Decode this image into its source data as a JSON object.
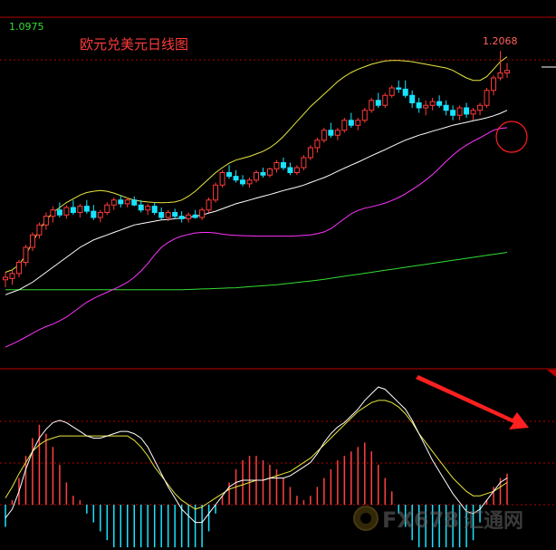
{
  "chart_data": [
    {
      "type": "candlestick",
      "title": "欧元兑美元日线图",
      "top_axis_label": "1.0975",
      "peak_label": "1.2068",
      "ylim": [
        1.08,
        1.22
      ],
      "colors": {
        "up": "#ff3b3b",
        "down": "#19e3ff",
        "mid": "#ffffff",
        "upper": "#e8e840",
        "ma_slow": "#ff33ff",
        "ma_long": "#33dd33",
        "grid": "#b00000",
        "annotation": "#ff2020"
      },
      "candles": [
        {
          "o": 1.115,
          "h": 1.118,
          "l": 1.112,
          "c": 1.116
        },
        {
          "o": 1.1155,
          "h": 1.119,
          "l": 1.113,
          "c": 1.1175
        },
        {
          "o": 1.1175,
          "h": 1.123,
          "l": 1.116,
          "c": 1.122
        },
        {
          "o": 1.122,
          "h": 1.129,
          "l": 1.1205,
          "c": 1.128
        },
        {
          "o": 1.128,
          "h": 1.134,
          "l": 1.1265,
          "c": 1.133
        },
        {
          "o": 1.133,
          "h": 1.138,
          "l": 1.1315,
          "c": 1.137
        },
        {
          "o": 1.137,
          "h": 1.142,
          "l": 1.135,
          "c": 1.1405
        },
        {
          "o": 1.1405,
          "h": 1.1445,
          "l": 1.138,
          "c": 1.143
        },
        {
          "o": 1.143,
          "h": 1.146,
          "l": 1.14,
          "c": 1.141
        },
        {
          "o": 1.141,
          "h": 1.145,
          "l": 1.1395,
          "c": 1.144
        },
        {
          "o": 1.144,
          "h": 1.147,
          "l": 1.141,
          "c": 1.142
        },
        {
          "o": 1.142,
          "h": 1.1455,
          "l": 1.14,
          "c": 1.1445
        },
        {
          "o": 1.1445,
          "h": 1.147,
          "l": 1.1415,
          "c": 1.1425
        },
        {
          "o": 1.1425,
          "h": 1.145,
          "l": 1.139,
          "c": 1.14
        },
        {
          "o": 1.14,
          "h": 1.143,
          "l": 1.138,
          "c": 1.142
        },
        {
          "o": 1.142,
          "h": 1.146,
          "l": 1.141,
          "c": 1.145
        },
        {
          "o": 1.145,
          "h": 1.148,
          "l": 1.143,
          "c": 1.147
        },
        {
          "o": 1.147,
          "h": 1.149,
          "l": 1.144,
          "c": 1.1455
        },
        {
          "o": 1.1455,
          "h": 1.148,
          "l": 1.144,
          "c": 1.147
        },
        {
          "o": 1.147,
          "h": 1.1485,
          "l": 1.1445,
          "c": 1.145
        },
        {
          "o": 1.145,
          "h": 1.147,
          "l": 1.142,
          "c": 1.143
        },
        {
          "o": 1.143,
          "h": 1.1455,
          "l": 1.141,
          "c": 1.1445
        },
        {
          "o": 1.1445,
          "h": 1.146,
          "l": 1.141,
          "c": 1.142
        },
        {
          "o": 1.142,
          "h": 1.144,
          "l": 1.139,
          "c": 1.14
        },
        {
          "o": 1.14,
          "h": 1.143,
          "l": 1.1385,
          "c": 1.142
        },
        {
          "o": 1.142,
          "h": 1.1435,
          "l": 1.1395,
          "c": 1.1405
        },
        {
          "o": 1.1405,
          "h": 1.1425,
          "l": 1.138,
          "c": 1.1395
        },
        {
          "o": 1.1395,
          "h": 1.142,
          "l": 1.138,
          "c": 1.141
        },
        {
          "o": 1.141,
          "h": 1.143,
          "l": 1.1395,
          "c": 1.14
        },
        {
          "o": 1.14,
          "h": 1.144,
          "l": 1.139,
          "c": 1.143
        },
        {
          "o": 1.143,
          "h": 1.148,
          "l": 1.142,
          "c": 1.147
        },
        {
          "o": 1.147,
          "h": 1.154,
          "l": 1.146,
          "c": 1.153
        },
        {
          "o": 1.153,
          "h": 1.159,
          "l": 1.152,
          "c": 1.158
        },
        {
          "o": 1.158,
          "h": 1.161,
          "l": 1.1555,
          "c": 1.1565
        },
        {
          "o": 1.1565,
          "h": 1.159,
          "l": 1.154,
          "c": 1.155
        },
        {
          "o": 1.155,
          "h": 1.157,
          "l": 1.1525,
          "c": 1.1535
        },
        {
          "o": 1.1535,
          "h": 1.156,
          "l": 1.152,
          "c": 1.155
        },
        {
          "o": 1.155,
          "h": 1.159,
          "l": 1.154,
          "c": 1.158
        },
        {
          "o": 1.158,
          "h": 1.16,
          "l": 1.156,
          "c": 1.157
        },
        {
          "o": 1.157,
          "h": 1.16,
          "l": 1.156,
          "c": 1.1595
        },
        {
          "o": 1.1595,
          "h": 1.163,
          "l": 1.158,
          "c": 1.162
        },
        {
          "o": 1.162,
          "h": 1.164,
          "l": 1.159,
          "c": 1.16
        },
        {
          "o": 1.16,
          "h": 1.162,
          "l": 1.157,
          "c": 1.158
        },
        {
          "o": 1.158,
          "h": 1.161,
          "l": 1.157,
          "c": 1.16
        },
        {
          "o": 1.16,
          "h": 1.165,
          "l": 1.159,
          "c": 1.164
        },
        {
          "o": 1.164,
          "h": 1.169,
          "l": 1.163,
          "c": 1.168
        },
        {
          "o": 1.168,
          "h": 1.172,
          "l": 1.166,
          "c": 1.171
        },
        {
          "o": 1.171,
          "h": 1.176,
          "l": 1.17,
          "c": 1.175
        },
        {
          "o": 1.175,
          "h": 1.178,
          "l": 1.172,
          "c": 1.173
        },
        {
          "o": 1.173,
          "h": 1.176,
          "l": 1.171,
          "c": 1.175
        },
        {
          "o": 1.175,
          "h": 1.18,
          "l": 1.174,
          "c": 1.179
        },
        {
          "o": 1.179,
          "h": 1.182,
          "l": 1.176,
          "c": 1.177
        },
        {
          "o": 1.177,
          "h": 1.18,
          "l": 1.175,
          "c": 1.179
        },
        {
          "o": 1.179,
          "h": 1.184,
          "l": 1.178,
          "c": 1.183
        },
        {
          "o": 1.183,
          "h": 1.188,
          "l": 1.182,
          "c": 1.187
        },
        {
          "o": 1.187,
          "h": 1.19,
          "l": 1.184,
          "c": 1.185
        },
        {
          "o": 1.185,
          "h": 1.19,
          "l": 1.184,
          "c": 1.189
        },
        {
          "o": 1.189,
          "h": 1.193,
          "l": 1.188,
          "c": 1.192
        },
        {
          "o": 1.192,
          "h": 1.195,
          "l": 1.19,
          "c": 1.1915
        },
        {
          "o": 1.1915,
          "h": 1.195,
          "l": 1.188,
          "c": 1.189
        },
        {
          "o": 1.189,
          "h": 1.191,
          "l": 1.184,
          "c": 1.186
        },
        {
          "o": 1.186,
          "h": 1.188,
          "l": 1.182,
          "c": 1.184
        },
        {
          "o": 1.184,
          "h": 1.187,
          "l": 1.181,
          "c": 1.185
        },
        {
          "o": 1.185,
          "h": 1.188,
          "l": 1.183,
          "c": 1.1865
        },
        {
          "o": 1.1865,
          "h": 1.189,
          "l": 1.184,
          "c": 1.185
        },
        {
          "o": 1.185,
          "h": 1.187,
          "l": 1.181,
          "c": 1.183
        },
        {
          "o": 1.183,
          "h": 1.185,
          "l": 1.179,
          "c": 1.181
        },
        {
          "o": 1.181,
          "h": 1.185,
          "l": 1.179,
          "c": 1.184
        },
        {
          "o": 1.184,
          "h": 1.186,
          "l": 1.18,
          "c": 1.1815
        },
        {
          "o": 1.1815,
          "h": 1.184,
          "l": 1.179,
          "c": 1.183
        },
        {
          "o": 1.183,
          "h": 1.186,
          "l": 1.181,
          "c": 1.185
        },
        {
          "o": 1.185,
          "h": 1.192,
          "l": 1.184,
          "c": 1.191
        },
        {
          "o": 1.191,
          "h": 1.197,
          "l": 1.189,
          "c": 1.196
        },
        {
          "o": 1.196,
          "h": 1.2068,
          "l": 1.195,
          "c": 1.198
        },
        {
          "o": 1.198,
          "h": 1.202,
          "l": 1.196,
          "c": 1.199
        }
      ],
      "mid_band": [
        1.109,
        1.11,
        1.111,
        1.1125,
        1.114,
        1.116,
        1.118,
        1.12,
        1.122,
        1.124,
        1.126,
        1.128,
        1.1295,
        1.131,
        1.132,
        1.133,
        1.134,
        1.135,
        1.136,
        1.137,
        1.1375,
        1.138,
        1.1385,
        1.139,
        1.1392,
        1.1395,
        1.1398,
        1.14,
        1.1405,
        1.141,
        1.1418,
        1.1425,
        1.1435,
        1.1445,
        1.1455,
        1.1462,
        1.147,
        1.1478,
        1.1485,
        1.1492,
        1.15,
        1.1508,
        1.1515,
        1.1522,
        1.153,
        1.154,
        1.155,
        1.156,
        1.1572,
        1.1585,
        1.1598,
        1.161,
        1.1622,
        1.1635,
        1.1648,
        1.166,
        1.1672,
        1.1685,
        1.1698,
        1.171,
        1.172,
        1.173,
        1.1738,
        1.1746,
        1.1754,
        1.1762,
        1.177,
        1.1776,
        1.1782,
        1.1788,
        1.1794,
        1.18,
        1.1808,
        1.1818,
        1.183
      ],
      "upper_band": [
        1.118,
        1.119,
        1.121,
        1.125,
        1.13,
        1.135,
        1.139,
        1.142,
        1.144,
        1.146,
        1.1475,
        1.149,
        1.15,
        1.1505,
        1.1508,
        1.1505,
        1.1498,
        1.1488,
        1.1478,
        1.147,
        1.1465,
        1.1462,
        1.146,
        1.1459,
        1.146,
        1.1462,
        1.147,
        1.1485,
        1.1505,
        1.153,
        1.1555,
        1.158,
        1.16,
        1.1618,
        1.163,
        1.1638,
        1.1645,
        1.1655,
        1.1665,
        1.168,
        1.17,
        1.1725,
        1.1755,
        1.1785,
        1.1815,
        1.1845,
        1.187,
        1.1895,
        1.192,
        1.1945,
        1.1965,
        1.1982,
        1.1995,
        1.2005,
        1.2015,
        1.2022,
        1.2028,
        1.203,
        1.203,
        1.2028,
        1.2025,
        1.202,
        1.2015,
        1.201,
        1.2005,
        1.2,
        1.199,
        1.1975,
        1.196,
        1.195,
        1.195,
        1.1965,
        1.1995,
        1.2025,
        1.2045
      ],
      "ma_slow": [
        1.088,
        1.0892,
        1.0905,
        1.092,
        1.0935,
        1.095,
        1.0962,
        1.0972,
        1.0985,
        1.1,
        1.102,
        1.104,
        1.106,
        1.1075,
        1.1088,
        1.11,
        1.1112,
        1.1125,
        1.114,
        1.116,
        1.1185,
        1.1215,
        1.125,
        1.128,
        1.13,
        1.1315,
        1.1325,
        1.1332,
        1.1338,
        1.134,
        1.134,
        1.1338,
        1.1333,
        1.133,
        1.1328,
        1.1327,
        1.1326,
        1.1325,
        1.1325,
        1.1325,
        1.1325,
        1.1325,
        1.1325,
        1.1326,
        1.1328,
        1.133,
        1.1335,
        1.1342,
        1.1355,
        1.1375,
        1.1395,
        1.1415,
        1.1428,
        1.1437,
        1.1443,
        1.145,
        1.1458,
        1.1468,
        1.148,
        1.1495,
        1.1512,
        1.153,
        1.155,
        1.1572,
        1.1598,
        1.1625,
        1.165,
        1.1672,
        1.169,
        1.1706,
        1.172,
        1.1735,
        1.175,
        1.1758,
        1.176
      ],
      "ma_long": [
        1.111,
        1.111,
        1.111,
        1.111,
        1.111,
        1.111,
        1.111,
        1.111,
        1.111,
        1.111,
        1.111,
        1.111,
        1.111,
        1.111,
        1.111,
        1.111,
        1.111,
        1.111,
        1.111,
        1.111,
        1.111,
        1.111,
        1.111,
        1.111,
        1.111,
        1.111,
        1.111,
        1.1111,
        1.1112,
        1.1113,
        1.1114,
        1.1115,
        1.1116,
        1.1117,
        1.1118,
        1.112,
        1.1122,
        1.1124,
        1.1126,
        1.1128,
        1.113,
        1.1133,
        1.1136,
        1.1139,
        1.1142,
        1.1145,
        1.1148,
        1.1152,
        1.1156,
        1.116,
        1.1164,
        1.1168,
        1.1172,
        1.1176,
        1.118,
        1.1184,
        1.1188,
        1.1192,
        1.1196,
        1.12,
        1.1204,
        1.1208,
        1.1212,
        1.1216,
        1.122,
        1.1224,
        1.1228,
        1.1232,
        1.1236,
        1.124,
        1.1244,
        1.1248,
        1.1252,
        1.1256,
        1.126
      ],
      "annotation": "circle-around-ma-slow-end"
    },
    {
      "type": "macd",
      "ylim": [
        -0.006,
        0.006
      ],
      "dif": [
        -0.0006,
        -0.0002,
        0.0006,
        0.0016,
        0.0024,
        0.003,
        0.0034,
        0.0037,
        0.0038,
        0.0037,
        0.0035,
        0.0033,
        0.0031,
        0.003,
        0.003,
        0.0031,
        0.0032,
        0.0033,
        0.0033,
        0.0032,
        0.003,
        0.0026,
        0.002,
        0.0014,
        0.0008,
        0.0003,
        -0.0002,
        -0.0005,
        -0.0008,
        -0.0008,
        -0.0004,
        0.0,
        0.0004,
        0.0008,
        0.001,
        0.0011,
        0.0011,
        0.0011,
        0.0011,
        0.0012,
        0.0012,
        0.0012,
        0.0013,
        0.0015,
        0.0017,
        0.0019,
        0.0023,
        0.0028,
        0.0032,
        0.0035,
        0.0037,
        0.004,
        0.0043,
        0.0047,
        0.005,
        0.0053,
        0.0052,
        0.0049,
        0.0046,
        0.0043,
        0.0038,
        0.0032,
        0.0026,
        0.002,
        0.0015,
        0.001,
        0.0005,
        0.0001,
        -0.0003,
        -0.0004,
        -0.0002,
        0.0002,
        0.0006,
        0.001,
        0.0012
      ],
      "dea": [
        0.0003,
        0.0008,
        0.0014,
        0.0019,
        0.0024,
        0.0027,
        0.0029,
        0.003,
        0.0031,
        0.0031,
        0.0031,
        0.0031,
        0.0031,
        0.0031,
        0.0031,
        0.0031,
        0.0031,
        0.0031,
        0.0031,
        0.0029,
        0.0026,
        0.0022,
        0.0017,
        0.0013,
        0.0009,
        0.0005,
        0.0002,
        0.0,
        -0.0002,
        -0.0001,
        0.0001,
        0.0003,
        0.0005,
        0.0007,
        0.0008,
        0.0009,
        0.001,
        0.0011,
        0.0011,
        0.0012,
        0.0013,
        0.0014,
        0.0015,
        0.0017,
        0.0019,
        0.0021,
        0.0024,
        0.0027,
        0.003,
        0.0033,
        0.0036,
        0.0039,
        0.0042,
        0.0044,
        0.0046,
        0.0047,
        0.0047,
        0.0046,
        0.0044,
        0.0041,
        0.0037,
        0.0032,
        0.0028,
        0.0024,
        0.002,
        0.0016,
        0.0012,
        0.0009,
        0.0006,
        0.0004,
        0.0004,
        0.0005,
        0.0006,
        0.0008,
        0.001
      ],
      "hist": [
        -0.001,
        0.0002,
        0.0012,
        0.0022,
        0.003,
        0.0036,
        0.0032,
        0.0026,
        0.0018,
        0.001,
        0.0004,
        0.0002,
        -0.0004,
        -0.0008,
        -0.0012,
        -0.0016,
        -0.002,
        -0.0024,
        -0.0026,
        -0.0028,
        -0.0032,
        -0.0036,
        -0.004,
        -0.0044,
        -0.0046,
        -0.0044,
        -0.004,
        -0.0034,
        -0.0026,
        -0.002,
        -0.0012,
        -0.0004,
        0.0004,
        0.001,
        0.0016,
        0.002,
        0.0022,
        0.0022,
        0.002,
        0.0018,
        0.0016,
        0.0012,
        0.0008,
        0.0004,
        0.0002,
        0.0004,
        0.0008,
        0.0012,
        0.0016,
        0.002,
        0.0022,
        0.0024,
        0.0026,
        0.0028,
        0.0024,
        0.0018,
        0.0012,
        0.0006,
        -0.0004,
        -0.001,
        -0.0016,
        -0.0022,
        -0.0026,
        -0.003,
        -0.0034,
        -0.0036,
        -0.0034,
        -0.003,
        -0.0024,
        -0.0016,
        -0.0008,
        0.0002,
        0.0008,
        0.0012,
        0.0014
      ],
      "annotation": "arrow-pointing-down-right"
    }
  ],
  "watermark": {
    "logo_text": "FX678",
    "brand_text": "汇通网"
  }
}
